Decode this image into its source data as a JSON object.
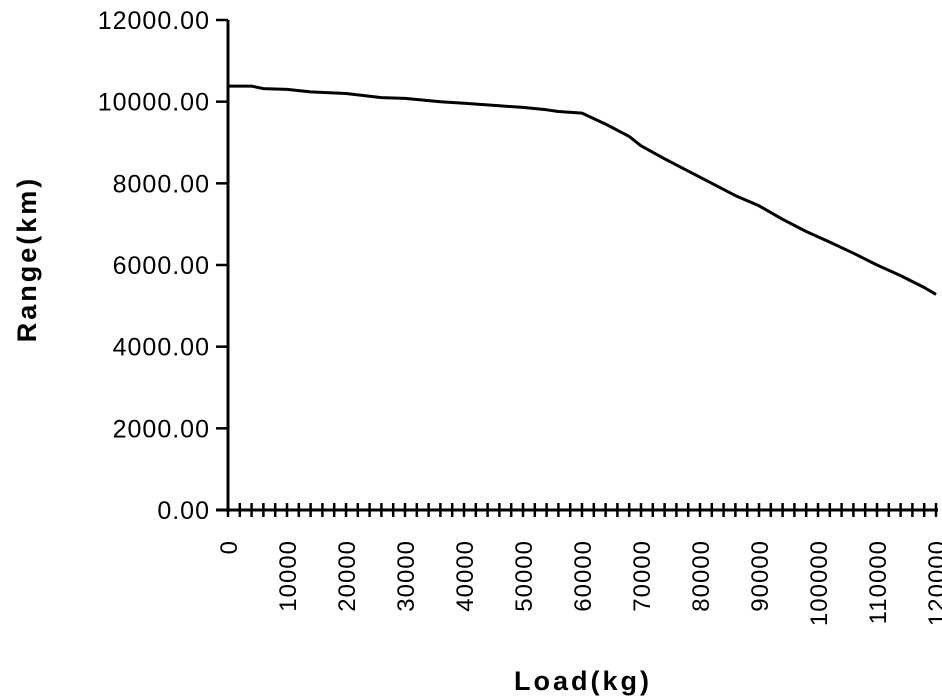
{
  "chart_data": {
    "type": "line",
    "title": "",
    "xlabel": "Load(kg)",
    "ylabel": "Range(km)",
    "xlim": [
      0,
      120000
    ],
    "ylim": [
      0,
      12000
    ],
    "grid": false,
    "x_ticks": [
      "0",
      "10000",
      "20000",
      "30000",
      "40000",
      "50000",
      "60000",
      "70000",
      "80000",
      "90000",
      "100000",
      "110000",
      "120000"
    ],
    "x_tick_values": [
      0,
      10000,
      20000,
      30000,
      40000,
      50000,
      60000,
      70000,
      80000,
      90000,
      100000,
      110000,
      120000
    ],
    "x_minor_step": 2000,
    "y_ticks": [
      "0.00",
      "2000.00",
      "4000.00",
      "6000.00",
      "8000.00",
      "10000.00",
      "12000.00"
    ],
    "y_tick_values": [
      0,
      2000,
      4000,
      6000,
      8000,
      10000,
      12000
    ],
    "series": [
      {
        "x": [
          0,
          4000,
          6000,
          10000,
          14000,
          20000,
          26000,
          30000,
          36000,
          40000,
          46000,
          50000,
          54000,
          56000,
          60000,
          64000,
          68000,
          70000,
          74000,
          78000,
          82000,
          86000,
          90000,
          94000,
          98000,
          102000,
          106000,
          110000,
          114000,
          118000,
          120000
        ],
        "y": [
          10380,
          10380,
          10320,
          10300,
          10240,
          10200,
          10100,
          10080,
          10000,
          9960,
          9900,
          9860,
          9800,
          9760,
          9720,
          9450,
          9150,
          8920,
          8600,
          8300,
          8000,
          7700,
          7450,
          7120,
          6820,
          6560,
          6290,
          6000,
          5740,
          5450,
          5280
        ]
      }
    ]
  }
}
